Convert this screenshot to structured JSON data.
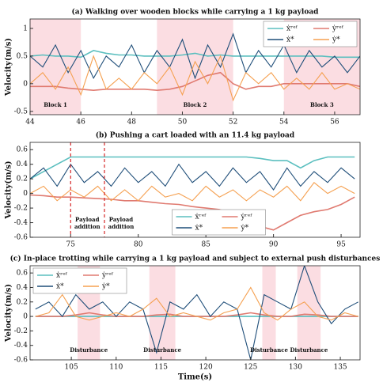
{
  "chart_data": [
    {
      "type": "line",
      "title": "(a) Walking over wooden blocks while carrying a 1 kg payload",
      "ylabel": "Velocity(m/s)",
      "x": [
        44,
        44.5,
        45,
        45.5,
        46,
        46.5,
        47,
        47.5,
        48,
        48.5,
        49,
        49.5,
        50,
        50.5,
        51,
        51.5,
        52,
        52.5,
        53,
        53.5,
        54,
        54.5,
        55,
        55.5,
        56,
        56.5,
        57
      ],
      "xlim": [
        44,
        57
      ],
      "xticks": [
        44,
        46,
        48,
        50,
        52,
        54,
        56
      ],
      "ylim": [
        -0.56,
        1.17
      ],
      "yticks": [
        -0.5,
        0,
        0.5,
        1
      ],
      "legend": "upper right",
      "regions": [
        {
          "range": [
            44,
            46
          ],
          "label": "Block 1"
        },
        {
          "range": [
            49,
            52
          ],
          "label": "Block 2"
        },
        {
          "range": [
            54,
            57
          ],
          "label": "Block 3"
        }
      ],
      "series": [
        {
          "name": "ẋʳᵉᶠ",
          "color": "#5bbfbf",
          "values": [
            0.5,
            0.52,
            0.5,
            0.5,
            0.48,
            0.6,
            0.55,
            0.52,
            0.52,
            0.5,
            0.5,
            0.5,
            0.52,
            0.55,
            0.5,
            0.52,
            0.5,
            0.5,
            0.5,
            0.5,
            0.5,
            0.5,
            0.5,
            0.5,
            0.48,
            0.48,
            0.48
          ]
        },
        {
          "name": "ẏʳᵉᶠ",
          "color": "#e07a70",
          "values": [
            -0.05,
            -0.05,
            -0.05,
            -0.08,
            -0.1,
            -0.12,
            -0.1,
            -0.1,
            -0.1,
            -0.1,
            -0.12,
            -0.1,
            -0.05,
            0.05,
            0.15,
            0.2,
            0.0,
            -0.1,
            -0.05,
            -0.05,
            0.0,
            0.0,
            0.0,
            0.0,
            0.0,
            0.0,
            -0.05
          ]
        },
        {
          "name": "ẋ*",
          "color": "#1f4e79",
          "values": [
            0.5,
            0.3,
            0.7,
            0.2,
            0.6,
            0.1,
            0.5,
            0.3,
            0.7,
            0.2,
            0.6,
            0.3,
            0.8,
            0.1,
            0.7,
            0.3,
            0.9,
            0.2,
            0.6,
            0.3,
            0.7,
            0.2,
            0.6,
            0.3,
            0.5,
            0.2,
            0.5
          ]
        },
        {
          "name": "ẏ*",
          "color": "#f5a050",
          "values": [
            0.0,
            0.2,
            -0.1,
            0.3,
            -0.2,
            0.5,
            -0.1,
            0.1,
            -0.1,
            0.2,
            0.0,
            0.3,
            -0.2,
            0.4,
            0.0,
            0.5,
            -0.3,
            0.2,
            0.0,
            0.2,
            -0.1,
            0.1,
            -0.1,
            0.2,
            -0.1,
            0.0,
            -0.1
          ]
        }
      ]
    },
    {
      "type": "line",
      "title": "(b) Pushing a cart loaded with an 11.4 kg payload",
      "ylabel": "Velocity(m/s)",
      "x": [
        72,
        73,
        74,
        75,
        76,
        77,
        78,
        79,
        80,
        81,
        82,
        83,
        84,
        85,
        86,
        87,
        88,
        89,
        90,
        91,
        92,
        93,
        94,
        95,
        96
      ],
      "xlim": [
        72,
        96.4
      ],
      "xticks": [
        75,
        80,
        85,
        90,
        95
      ],
      "ylim": [
        -0.6,
        0.7
      ],
      "yticks": [
        -0.6,
        -0.4,
        -0.2,
        0,
        0.2,
        0.4,
        0.6
      ],
      "legend": "lower center",
      "markers": [
        {
          "x": 75,
          "label": "Payload addition"
        },
        {
          "x": 77.5,
          "label": "Payload addition"
        }
      ],
      "series": [
        {
          "name": "ẋʳᵉᶠ",
          "color": "#5bbfbf",
          "values": [
            0.2,
            0.3,
            0.4,
            0.5,
            0.5,
            0.5,
            0.5,
            0.5,
            0.5,
            0.5,
            0.5,
            0.5,
            0.5,
            0.5,
            0.5,
            0.5,
            0.5,
            0.48,
            0.45,
            0.45,
            0.35,
            0.45,
            0.5,
            0.5,
            0.5
          ]
        },
        {
          "name": "ẏʳᵉᶠ",
          "color": "#e07a70",
          "values": [
            -0.02,
            -0.03,
            -0.05,
            -0.05,
            -0.06,
            -0.07,
            -0.08,
            -0.1,
            -0.1,
            -0.12,
            -0.14,
            -0.15,
            -0.18,
            -0.2,
            -0.22,
            -0.28,
            -0.35,
            -0.45,
            -0.5,
            -0.4,
            -0.3,
            -0.25,
            -0.22,
            -0.15,
            -0.05
          ]
        },
        {
          "name": "ẋ*",
          "color": "#1f4e79",
          "values": [
            0.2,
            0.35,
            0.1,
            0.4,
            0.15,
            0.3,
            0.1,
            0.35,
            0.15,
            0.3,
            0.1,
            0.4,
            0.15,
            0.3,
            0.1,
            0.35,
            0.15,
            0.3,
            0.05,
            0.35,
            0.1,
            0.3,
            0.15,
            0.35,
            0.2
          ]
        },
        {
          "name": "ẏ*",
          "color": "#f5a050",
          "values": [
            0.0,
            0.1,
            -0.1,
            0.05,
            -0.05,
            0.1,
            -0.1,
            0.05,
            -0.1,
            0.1,
            -0.05,
            0.0,
            -0.1,
            0.1,
            -0.05,
            0.05,
            -0.1,
            0.05,
            -0.05,
            0.1,
            -0.1,
            0.15,
            0.0,
            0.1,
            0.0
          ]
        }
      ]
    },
    {
      "type": "line",
      "title": "(c) In-place trotting while carrying a 1 kg payload and subject to external push disturbances",
      "ylabel": "Velocity(m/s)",
      "xlabel": "Time(s)",
      "x": [
        101,
        102.5,
        104,
        105.5,
        107,
        108.5,
        110,
        111.5,
        113,
        114.5,
        116,
        117.5,
        119,
        120.5,
        122,
        123.5,
        125,
        126.5,
        128,
        129.5,
        131,
        132.5,
        134,
        135.5,
        137
      ],
      "xlim": [
        100.4,
        137.2
      ],
      "xticks": [
        105,
        110,
        115,
        120,
        125,
        130,
        135
      ],
      "ylim": [
        -0.6,
        0.7
      ],
      "yticks": [
        -0.6,
        -0.4,
        -0.2,
        0,
        0.2,
        0.4,
        0.6
      ],
      "legend": "upper left",
      "regions": [
        {
          "range": [
            105.7,
            108.2
          ],
          "label": "Disturbance"
        },
        {
          "range": [
            113.7,
            116.6
          ],
          "label": "Disturbance"
        },
        {
          "range": [
            126.3,
            127.8
          ],
          "label": "Disturbance"
        },
        {
          "range": [
            130.2,
            132.8
          ],
          "label": "Disturbance"
        }
      ],
      "series": [
        {
          "name": "ẋʳᵉᶠ",
          "color": "#5bbfbf",
          "values": [
            0,
            0,
            0,
            0,
            0,
            0,
            0,
            0,
            0,
            0,
            0,
            0,
            0,
            0,
            0,
            0,
            0,
            0,
            0,
            0,
            0,
            0,
            0,
            0,
            0
          ]
        },
        {
          "name": "ẏʳᵉᶠ",
          "color": "#e07a70",
          "values": [
            0,
            0,
            0,
            0.02,
            0.05,
            0.02,
            0,
            0,
            0,
            0.02,
            0.03,
            0,
            0,
            0,
            0,
            0.02,
            0.05,
            0.02,
            0,
            0,
            0.03,
            0.02,
            0,
            0,
            0
          ]
        },
        {
          "name": "ẋ*",
          "color": "#1f4e79",
          "values": [
            0.1,
            0.2,
            0.0,
            0.3,
            0.1,
            0.2,
            0.0,
            0.2,
            0.1,
            -0.5,
            0.2,
            0.1,
            0.3,
            0.0,
            0.2,
            0.1,
            -0.6,
            0.3,
            0.2,
            0.1,
            0.7,
            0.2,
            -0.1,
            0.1,
            0.2
          ]
        },
        {
          "name": "ẏ*",
          "color": "#f5a050",
          "values": [
            0.0,
            0.05,
            0.3,
            0.0,
            -0.05,
            0.0,
            0.05,
            0.0,
            0.1,
            0.25,
            0.0,
            0.05,
            0.0,
            -0.05,
            0.05,
            0.1,
            0.4,
            0.05,
            -0.05,
            0.1,
            0.2,
            0.0,
            -0.05,
            0.05,
            0.0
          ]
        }
      ]
    }
  ]
}
